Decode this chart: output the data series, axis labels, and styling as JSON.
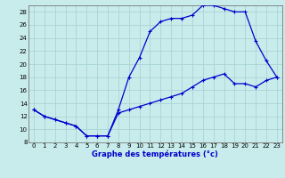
{
  "title": "Graphe des températures (°c)",
  "bg_color": "#c8ecec",
  "grid_color": "#aad4d4",
  "line_color": "#0000cc",
  "xlim": [
    -0.5,
    23.5
  ],
  "ylim": [
    8,
    29
  ],
  "xticks": [
    0,
    1,
    2,
    3,
    4,
    5,
    6,
    7,
    8,
    9,
    10,
    11,
    12,
    13,
    14,
    15,
    16,
    17,
    18,
    19,
    20,
    21,
    22,
    23
  ],
  "yticks": [
    8,
    10,
    12,
    14,
    16,
    18,
    20,
    22,
    24,
    26,
    28
  ],
  "upper_line_x": [
    0,
    1,
    2,
    3,
    4,
    5,
    6,
    7,
    8,
    9,
    10,
    11,
    12,
    13,
    14,
    15,
    16,
    17,
    18,
    19,
    20,
    21,
    22,
    23
  ],
  "upper_line_y": [
    13,
    12,
    11.5,
    11,
    10.5,
    9,
    9,
    9,
    13,
    18,
    21,
    25,
    26.5,
    27,
    27,
    27.5,
    29,
    29,
    28.5,
    28,
    28,
    23.5,
    20.5,
    18
  ],
  "lower_line_x": [
    0,
    1,
    2,
    3,
    4,
    5,
    6,
    7,
    8,
    9,
    10,
    11,
    12,
    13,
    14,
    15,
    16,
    17,
    18,
    19,
    20,
    21,
    22,
    23
  ],
  "lower_line_y": [
    13,
    12,
    11.5,
    11,
    10.5,
    9,
    9,
    9,
    12.5,
    13,
    13.5,
    14,
    14.5,
    15,
    15.5,
    16.5,
    17.5,
    18,
    18.5,
    17,
    17,
    16.5,
    17.5,
    18
  ],
  "tick_labelsize": 5,
  "xlabel_fontsize": 6,
  "marker_size": 2.5,
  "line_width": 0.9
}
